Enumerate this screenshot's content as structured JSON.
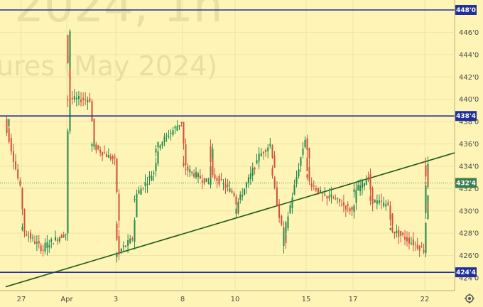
{
  "watermark": {
    "line1": "2024, 1h",
    "line2": "ures (May 2024)"
  },
  "chart_data": {
    "type": "candlestick",
    "y_axis": {
      "range": [
        423.0,
        449.0
      ],
      "ticks": [
        "424'0",
        "426'0",
        "428'0",
        "430'0",
        "432'0",
        "434'0",
        "436'0",
        "438'0",
        "440'0",
        "442'0",
        "444'0",
        "446'0"
      ]
    },
    "x_axis": {
      "ticks": [
        "27",
        "Apr",
        "3",
        "8",
        "10",
        "15",
        "17",
        "22"
      ]
    },
    "horizontal_levels": [
      {
        "label": "448'0",
        "value": 448.0
      },
      {
        "label": "438'4",
        "value": 438.5
      },
      {
        "label": "424'4",
        "value": 424.5
      }
    ],
    "trendline": {
      "start": {
        "x": "26",
        "y": 423.2
      },
      "end": {
        "x": "23",
        "y": 435.2
      }
    },
    "last_price": {
      "label": "432'4",
      "value": 432.5
    },
    "price_path": [
      {
        "x": "26",
        "y": 437.0
      },
      {
        "x": "26",
        "y": 438.2
      },
      {
        "x": "27",
        "y": 432.0
      },
      {
        "x": "27",
        "y": 428.5
      },
      {
        "x": "28",
        "y": 426.5
      },
      {
        "x": "28",
        "y": 426.8
      },
      {
        "x": "Apr",
        "y": 428.0
      },
      {
        "x": "Apr",
        "y": 446.0
      },
      {
        "x": "Apr",
        "y": 440.0
      },
      {
        "x": "2",
        "y": 440.0
      },
      {
        "x": "2",
        "y": 436.0
      },
      {
        "x": "3",
        "y": 434.5
      },
      {
        "x": "3",
        "y": 429.0
      },
      {
        "x": "3",
        "y": 426.0
      },
      {
        "x": "4",
        "y": 427.5
      },
      {
        "x": "4",
        "y": 431.0
      },
      {
        "x": "5",
        "y": 433.5
      },
      {
        "x": "5",
        "y": 435.5
      },
      {
        "x": "8",
        "y": 438.0
      },
      {
        "x": "8",
        "y": 434.0
      },
      {
        "x": "9",
        "y": 432.5
      },
      {
        "x": "9",
        "y": 435.5
      },
      {
        "x": "9",
        "y": 433.5
      },
      {
        "x": "10",
        "y": 431.5
      },
      {
        "x": "10",
        "y": 430.0
      },
      {
        "x": "11",
        "y": 434.0
      },
      {
        "x": "11",
        "y": 434.5
      },
      {
        "x": "12",
        "y": 436.0
      },
      {
        "x": "12",
        "y": 434.0
      },
      {
        "x": "13",
        "y": 428.5
      },
      {
        "x": "13",
        "y": 427.0
      },
      {
        "x": "15",
        "y": 436.5
      },
      {
        "x": "15",
        "y": 434.5
      },
      {
        "x": "15",
        "y": 433.0
      },
      {
        "x": "16",
        "y": 431.0
      },
      {
        "x": "16",
        "y": 431.5
      },
      {
        "x": "17",
        "y": 430.0
      },
      {
        "x": "17",
        "y": 431.5
      },
      {
        "x": "18",
        "y": 433.0
      },
      {
        "x": "18",
        "y": 431.0
      },
      {
        "x": "19",
        "y": 430.5
      },
      {
        "x": "19",
        "y": 428.5
      },
      {
        "x": "22",
        "y": 426.5
      },
      {
        "x": "22",
        "y": 431.5
      },
      {
        "x": "22",
        "y": 430.0
      },
      {
        "x": "22",
        "y": 434.0
      },
      {
        "x": "22",
        "y": 432.5
      }
    ]
  }
}
